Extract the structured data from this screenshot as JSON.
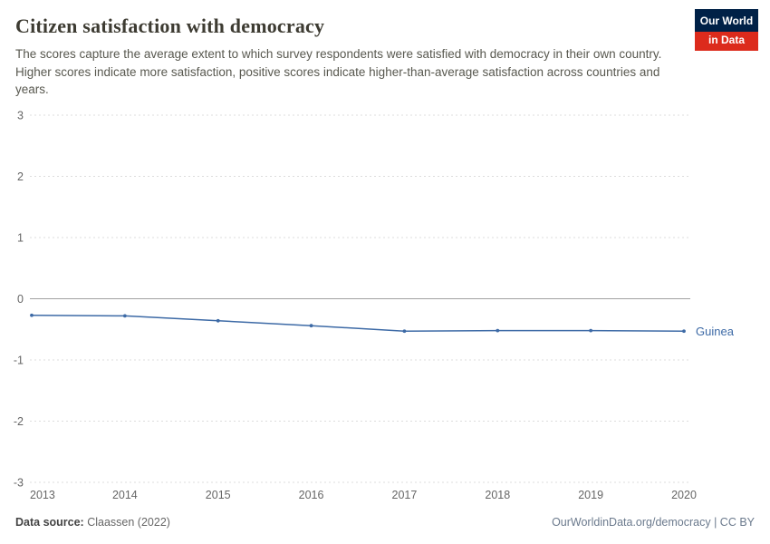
{
  "header": {
    "title": "Citizen satisfaction with democracy",
    "subtitle": "The scores capture the average extent to which survey respondents were satisfied with democracy in their own country. Higher scores indicate more satisfaction, positive scores indicate higher-than-average satisfaction across countries and years.",
    "logo": {
      "line1": "Our World",
      "line2": "in Data"
    }
  },
  "chart_data": {
    "type": "line",
    "title": "Citizen satisfaction with democracy",
    "x": [
      2013,
      2014,
      2015,
      2016,
      2017,
      2018,
      2019,
      2020
    ],
    "series": [
      {
        "name": "Guinea",
        "values": [
          -0.27,
          -0.28,
          -0.36,
          -0.44,
          -0.53,
          -0.52,
          -0.52,
          -0.53
        ],
        "color": "#3d6aa6"
      }
    ],
    "xlabel": "",
    "ylabel": "",
    "ylim": [
      -3,
      3
    ],
    "yticks": [
      3,
      2,
      1,
      0,
      -1,
      -2,
      -3
    ],
    "grid": "horizontal dashed, solid zero line",
    "legend_position": "end-of-line label"
  },
  "footer": {
    "source_label": "Data source:",
    "source_value": "Claassen (2022)",
    "credit": "OurWorldinData.org/democracy | CC BY"
  },
  "colors": {
    "accent": "#3d6aa6",
    "logo_navy": "#002147",
    "logo_red": "#dc2b1c",
    "gridline": "#dcdcdc",
    "zero_line": "#a1a1a1",
    "tick_text": "#666666"
  }
}
